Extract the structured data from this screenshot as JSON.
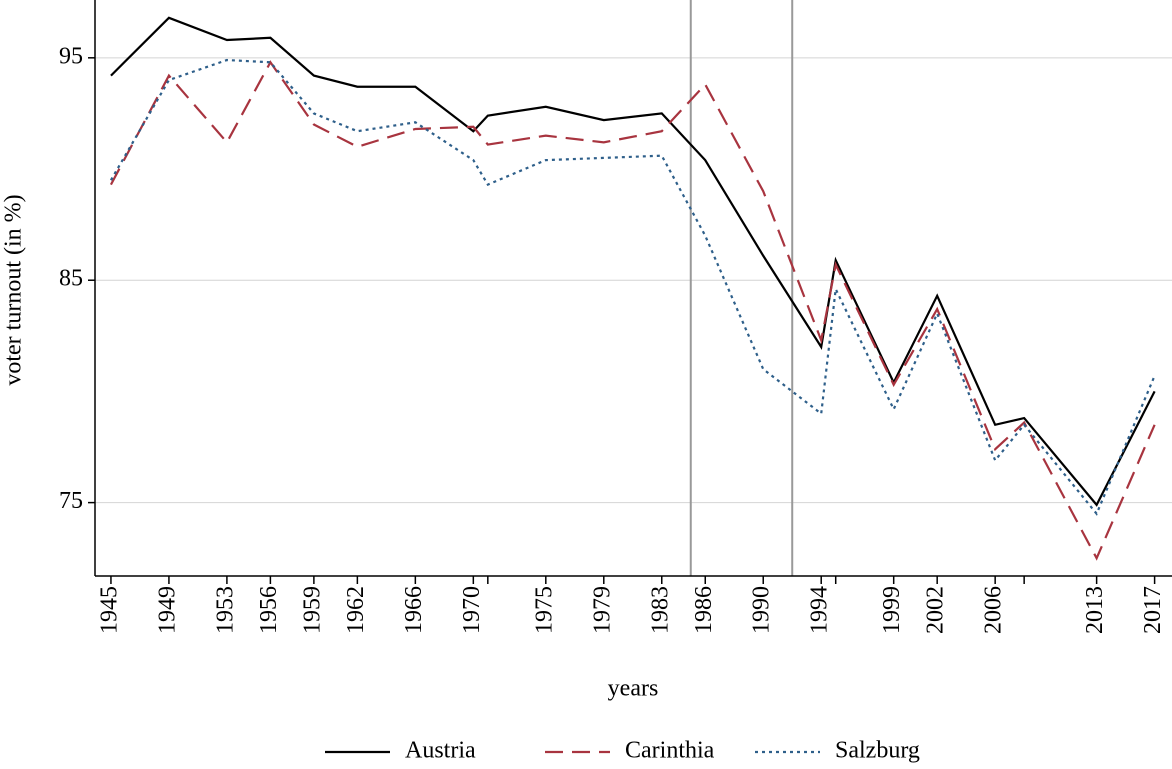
{
  "chart_data": {
    "type": "line",
    "y_label": "voter turnout (in %)",
    "x_label": "years",
    "x": [
      1945,
      1949,
      1953,
      1956,
      1959,
      1962,
      1966,
      1970,
      1971,
      1975,
      1979,
      1983,
      1986,
      1990,
      1994,
      1995,
      1999,
      2002,
      2006,
      2008,
      2013,
      2017
    ],
    "series": [
      {
        "name": "Austria",
        "color": "#000000",
        "style": "solid",
        "values": [
          94.2,
          96.8,
          95.8,
          95.9,
          94.2,
          93.7,
          93.7,
          91.7,
          92.4,
          92.8,
          92.2,
          92.5,
          90.4,
          86.1,
          82.0,
          85.9,
          80.4,
          84.3,
          78.5,
          78.8,
          74.9,
          80.0
        ]
      },
      {
        "name": "Carinthia",
        "color": "#a8343f",
        "style": "dashed",
        "values": [
          89.3,
          94.2,
          91.2,
          94.8,
          92.0,
          91.0,
          91.8,
          91.9,
          91.1,
          91.5,
          91.2,
          91.7,
          93.8,
          89.0,
          82.3,
          85.7,
          80.3,
          83.7,
          77.4,
          78.6,
          72.5,
          78.5
        ]
      },
      {
        "name": "Salzburg",
        "color": "#2e5f8a",
        "style": "dotted",
        "values": [
          89.5,
          94.0,
          94.9,
          94.8,
          92.5,
          91.7,
          92.1,
          90.4,
          89.3,
          90.4,
          90.5,
          90.6,
          87.0,
          81.0,
          79.0,
          84.6,
          79.2,
          83.5,
          76.9,
          78.5,
          74.5,
          80.7
        ]
      }
    ],
    "xlim": [
      1943.9,
      2018.2
    ],
    "ylim": [
      71.7,
      97.6
    ],
    "xticks": [
      1945,
      1949,
      1953,
      1956,
      1959,
      1962,
      1966,
      1970,
      1975,
      1979,
      1983,
      1986,
      1990,
      1994,
      1999,
      2002,
      2006,
      2013,
      2017
    ],
    "xminor_ticks": [
      1971,
      1995,
      2008
    ],
    "yticks": [
      75,
      85,
      95
    ],
    "vlines": [
      1985,
      1992
    ],
    "grid": true,
    "legend": "bottom"
  }
}
